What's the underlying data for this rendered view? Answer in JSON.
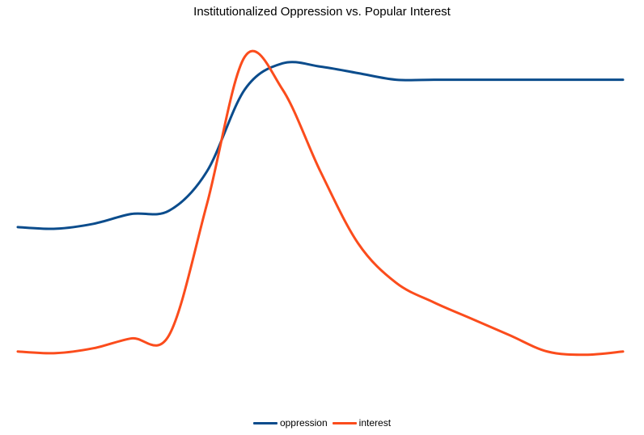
{
  "chart_data": {
    "type": "line",
    "title": "Institutionalized Oppression vs. Popular Interest",
    "xlabel": "",
    "ylabel": "",
    "grid": false,
    "legend_position": "bottom-center",
    "x": [
      0,
      1,
      2,
      3,
      4,
      5,
      6,
      7,
      8,
      9,
      10,
      11,
      12,
      13,
      14,
      15,
      16
    ],
    "ylim": [
      0,
      1
    ],
    "series": [
      {
        "name": "oppression",
        "color": "#0b4c8c",
        "values": [
          0.43,
          0.425,
          0.44,
          0.47,
          0.48,
          0.6,
          0.85,
          0.93,
          0.92,
          0.9,
          0.88,
          0.88,
          0.88,
          0.88,
          0.88,
          0.88,
          0.88
        ]
      },
      {
        "name": "interest",
        "color": "#fb4c1c",
        "values": [
          0.05,
          0.045,
          0.06,
          0.09,
          0.1,
          0.5,
          0.95,
          0.85,
          0.6,
          0.38,
          0.26,
          0.2,
          0.15,
          0.1,
          0.05,
          0.04,
          0.05
        ]
      }
    ]
  }
}
